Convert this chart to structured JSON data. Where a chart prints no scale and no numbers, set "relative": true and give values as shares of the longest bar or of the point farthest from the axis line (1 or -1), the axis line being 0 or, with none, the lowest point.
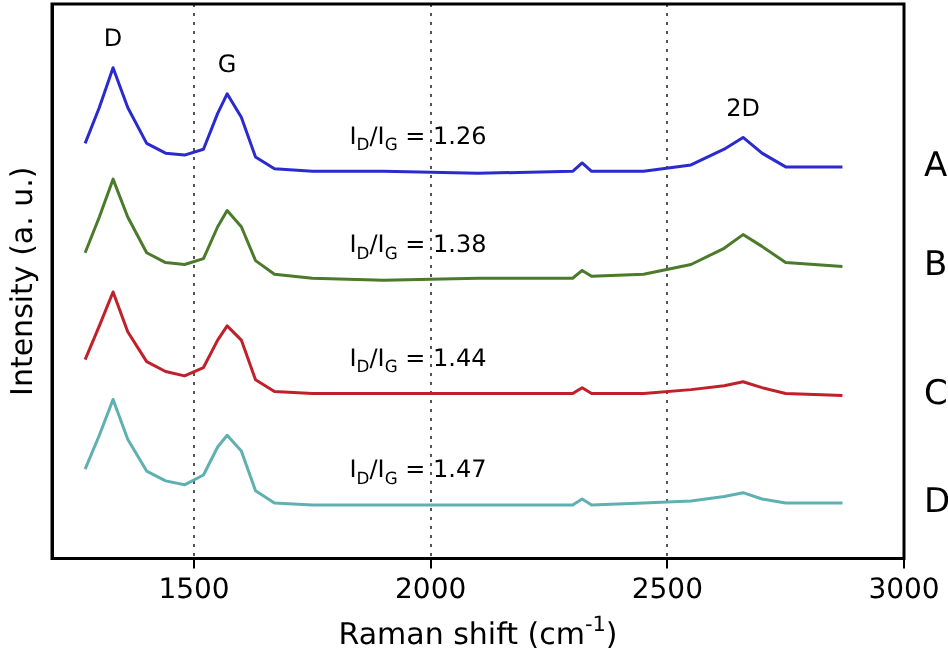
{
  "chart_data": {
    "type": "line",
    "relative": true,
    "xlabel": "Raman shift (cm$^{-1}$)",
    "ylabel": "Intensity (a. u.)",
    "xlim": [
      1200,
      3000
    ],
    "xticks": [
      1500,
      2000,
      2500,
      3000
    ],
    "grid": "x",
    "legend": false,
    "marker": "none",
    "line_style": "solid",
    "x": [
      1270,
      1300,
      1329,
      1360,
      1400,
      1440,
      1480,
      1520,
      1550,
      1570,
      1600,
      1630,
      1670,
      1750,
      1900,
      2100,
      2300,
      2320,
      2340,
      2450,
      2550,
      2620,
      2660,
      2700,
      2750,
      2870
    ],
    "series": [
      {
        "name": "A",
        "color": "#2a2ad0",
        "values": [
          0.846,
          0.919,
          1.0,
          0.919,
          0.846,
          0.826,
          0.822,
          0.834,
          0.907,
          0.947,
          0.899,
          0.818,
          0.794,
          0.789,
          0.789,
          0.785,
          0.789,
          0.806,
          0.789,
          0.789,
          0.802,
          0.834,
          0.858,
          0.826,
          0.798,
          0.798
        ]
      },
      {
        "name": "B",
        "color": "#4a7a2a",
        "values": [
          0.623,
          0.696,
          0.773,
          0.696,
          0.623,
          0.603,
          0.599,
          0.611,
          0.676,
          0.709,
          0.676,
          0.607,
          0.579,
          0.571,
          0.567,
          0.571,
          0.571,
          0.587,
          0.575,
          0.579,
          0.599,
          0.632,
          0.66,
          0.636,
          0.603,
          0.595
        ]
      },
      {
        "name": "C",
        "color": "#c0202a",
        "values": [
          0.405,
          0.474,
          0.543,
          0.462,
          0.401,
          0.381,
          0.372,
          0.389,
          0.445,
          0.474,
          0.445,
          0.364,
          0.34,
          0.336,
          0.336,
          0.336,
          0.336,
          0.348,
          0.336,
          0.336,
          0.344,
          0.352,
          0.36,
          0.348,
          0.336,
          0.332
        ]
      },
      {
        "name": "D",
        "color": "#5fb0b0",
        "values": [
          0.182,
          0.251,
          0.324,
          0.243,
          0.178,
          0.158,
          0.15,
          0.17,
          0.227,
          0.251,
          0.219,
          0.138,
          0.113,
          0.109,
          0.109,
          0.109,
          0.109,
          0.121,
          0.109,
          0.113,
          0.117,
          0.126,
          0.134,
          0.121,
          0.113,
          0.113
        ]
      }
    ],
    "annotations": [
      {
        "text": "D",
        "x": 1329,
        "y": 1.0
      },
      {
        "text": "G",
        "x": 1570,
        "y": 0.947
      },
      {
        "text": "2D",
        "x": 2660,
        "y": 0.858
      },
      "I$_{D}$/I$_{G}$ = 1.26",
      "I$_{D}$/I$_{G}$ = 1.38",
      "I$_{D}$/I$_{G}$ = 1.44",
      "I$_{D}$/I$_{G}$ = 1.47"
    ]
  }
}
